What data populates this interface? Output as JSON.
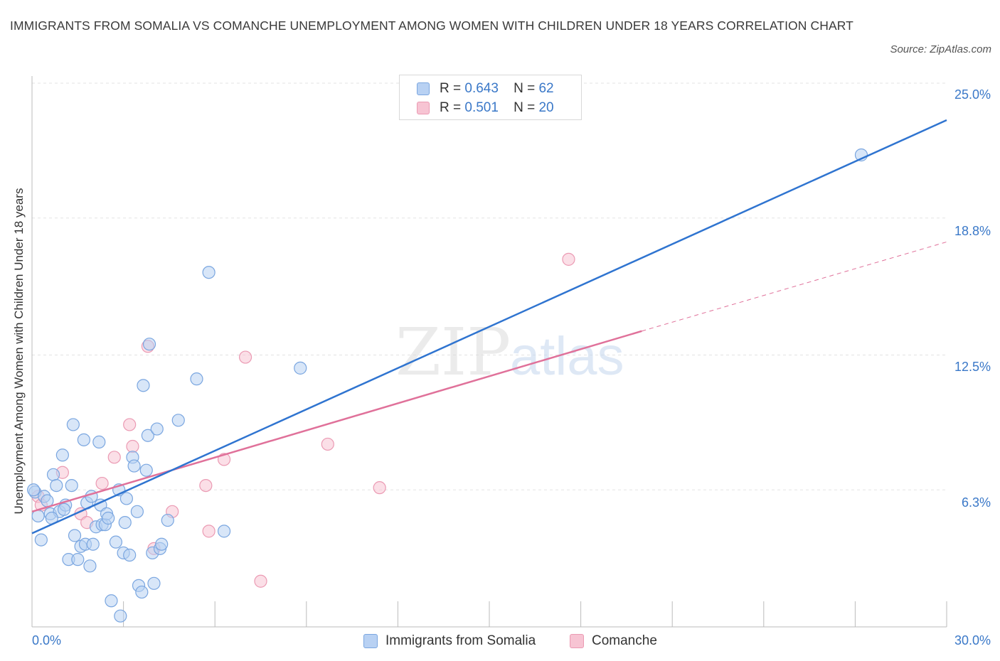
{
  "title": "IMMIGRANTS FROM SOMALIA VS COMANCHE UNEMPLOYMENT AMONG WOMEN WITH CHILDREN UNDER 18 YEARS CORRELATION CHART",
  "source": "Source: ZipAtlas.com",
  "watermark": {
    "zip": "ZIP",
    "atlas": "atlas"
  },
  "legend": {
    "somalia": {
      "r_label": "R =",
      "r_value": "0.643",
      "n_label": "N =",
      "n_value": "62"
    },
    "comanche": {
      "r_label": "R =",
      "r_value": "0.501",
      "n_label": "N =",
      "n_value": "20"
    }
  },
  "colors": {
    "somalia_fill": "#b8d1f3",
    "somalia_stroke": "#7aa6e0",
    "somalia_line": "#2f74d0",
    "comanche_fill": "#f7c4d3",
    "comanche_stroke": "#eb9ab3",
    "comanche_line": "#e0719a",
    "grid": "#e3e3e3",
    "tick_text": "#3a78c8"
  },
  "chart_data": {
    "type": "scatter",
    "title": "IMMIGRANTS FROM SOMALIA VS COMANCHE UNEMPLOYMENT AMONG WOMEN WITH CHILDREN UNDER 18 YEARS CORRELATION CHART",
    "xlabel": "",
    "ylabel": "Unemployment Among Women with Children Under 18 years",
    "xlim": [
      0,
      30
    ],
    "ylim": [
      0,
      25
    ],
    "x_tick_labels": [
      "0.0%",
      "30.0%"
    ],
    "y_tick_labels": [
      "25.0%",
      "18.8%",
      "12.5%",
      "6.3%"
    ],
    "y_ticks": [
      25.0,
      18.8,
      12.5,
      6.3
    ],
    "grid": true,
    "legend_position": "top-center and bottom",
    "series": [
      {
        "name": "Immigrants from Somalia",
        "color": "#7aa6e0",
        "trend": {
          "x": [
            0.0,
            30.0
          ],
          "y": [
            4.3,
            23.3
          ],
          "style": "solid"
        },
        "points": [
          [
            0.1,
            6.2
          ],
          [
            0.2,
            5.1
          ],
          [
            0.3,
            4.0
          ],
          [
            0.4,
            6.0
          ],
          [
            0.5,
            5.8
          ],
          [
            0.6,
            5.2
          ],
          [
            0.7,
            7.0
          ],
          [
            0.8,
            6.5
          ],
          [
            0.9,
            5.3
          ],
          [
            1.0,
            7.9
          ],
          [
            1.1,
            5.6
          ],
          [
            1.2,
            3.1
          ],
          [
            1.3,
            6.5
          ],
          [
            1.35,
            9.3
          ],
          [
            1.4,
            4.2
          ],
          [
            1.5,
            3.1
          ],
          [
            1.6,
            3.7
          ],
          [
            1.7,
            8.6
          ],
          [
            1.75,
            3.8
          ],
          [
            1.8,
            5.7
          ],
          [
            1.9,
            2.8
          ],
          [
            1.95,
            6.0
          ],
          [
            2.0,
            3.8
          ],
          [
            2.1,
            4.6
          ],
          [
            2.2,
            8.5
          ],
          [
            2.25,
            5.6
          ],
          [
            2.3,
            4.7
          ],
          [
            2.4,
            4.7
          ],
          [
            2.45,
            5.2
          ],
          [
            2.5,
            5.0
          ],
          [
            2.6,
            1.2
          ],
          [
            2.85,
            6.3
          ],
          [
            2.9,
            0.5
          ],
          [
            3.0,
            3.4
          ],
          [
            3.05,
            4.8
          ],
          [
            3.1,
            5.9
          ],
          [
            3.2,
            3.3
          ],
          [
            3.3,
            7.8
          ],
          [
            3.35,
            7.4
          ],
          [
            3.5,
            1.9
          ],
          [
            3.6,
            1.6
          ],
          [
            3.65,
            11.1
          ],
          [
            3.75,
            7.2
          ],
          [
            3.8,
            8.8
          ],
          [
            3.85,
            13.0
          ],
          [
            3.95,
            3.4
          ],
          [
            4.0,
            2.0
          ],
          [
            4.1,
            9.1
          ],
          [
            4.2,
            3.6
          ],
          [
            4.25,
            3.8
          ],
          [
            4.8,
            9.5
          ],
          [
            5.4,
            11.4
          ],
          [
            5.8,
            16.3
          ],
          [
            6.3,
            4.4
          ],
          [
            8.8,
            11.9
          ],
          [
            27.2,
            21.7
          ],
          [
            0.05,
            6.3
          ],
          [
            1.05,
            5.4
          ],
          [
            2.75,
            3.9
          ],
          [
            3.45,
            5.3
          ],
          [
            4.45,
            4.9
          ],
          [
            0.65,
            5.0
          ]
        ]
      },
      {
        "name": "Comanche",
        "color": "#eb9ab3",
        "trend": {
          "x": [
            0.0,
            20.0
          ],
          "y": [
            5.3,
            13.6
          ],
          "style": "solid",
          "extension": {
            "x": [
              20.0,
              30.0
            ],
            "y": [
              13.6,
              17.7
            ],
            "style": "dashed"
          }
        },
        "points": [
          [
            0.2,
            6.0
          ],
          [
            0.3,
            5.6
          ],
          [
            1.0,
            7.1
          ],
          [
            1.6,
            5.2
          ],
          [
            1.8,
            4.8
          ],
          [
            2.3,
            6.6
          ],
          [
            2.7,
            7.8
          ],
          [
            3.2,
            9.3
          ],
          [
            3.3,
            8.3
          ],
          [
            3.8,
            12.9
          ],
          [
            4.0,
            3.6
          ],
          [
            4.6,
            5.3
          ],
          [
            5.7,
            6.5
          ],
          [
            5.8,
            4.4
          ],
          [
            6.3,
            7.7
          ],
          [
            7.0,
            12.4
          ],
          [
            7.5,
            2.1
          ],
          [
            9.7,
            8.4
          ],
          [
            11.4,
            6.4
          ],
          [
            17.6,
            16.9
          ]
        ]
      }
    ]
  },
  "bottom_legend": {
    "somalia": "Immigrants from Somalia",
    "comanche": "Comanche"
  },
  "axes": {
    "x_min_label": "0.0%",
    "x_max_label": "30.0%"
  }
}
